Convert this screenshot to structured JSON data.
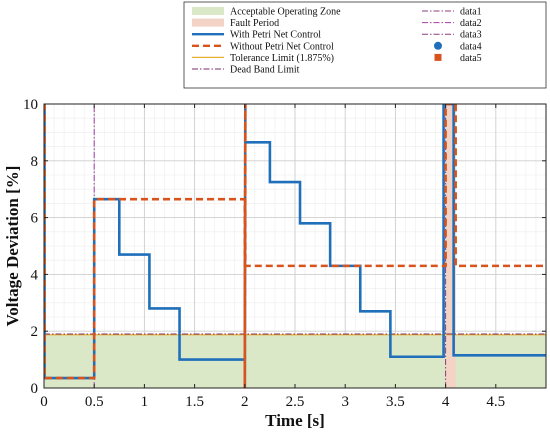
{
  "chart_data": {
    "type": "line",
    "xlabel": "Time [s]",
    "ylabel": "Voltage Deviation [%]",
    "xlim": [
      0,
      5
    ],
    "ylim": [
      0,
      10
    ],
    "xticks": [
      0,
      0.5,
      1,
      1.5,
      2,
      2.5,
      3,
      3.5,
      4,
      4.5
    ],
    "xtick_labels": [
      "0",
      "0.5",
      "1",
      "1.5",
      "2",
      "2.5",
      "3",
      "3.5",
      "4",
      "4.5"
    ],
    "yticks": [
      0,
      2,
      4,
      6,
      8,
      10
    ],
    "ytick_labels": [
      "0",
      "2",
      "4",
      "6",
      "8",
      "10"
    ],
    "grid": true,
    "legend_placement": "top",
    "tolerance_limit": 1.875,
    "dead_band_limit": 1.9,
    "acceptable_zone": {
      "y": [
        0,
        1.875
      ],
      "color": "#dbe8c8"
    },
    "fault_period": {
      "x": [
        4.0,
        4.1
      ],
      "color": "#f2d3c5"
    },
    "legend": [
      {
        "label": "Acceptable Operating Zone",
        "kind": "patch",
        "color": "#dbe8c8"
      },
      {
        "label": "data1",
        "kind": "dashdot",
        "color": "#8a3d7a"
      },
      {
        "label": "Fault Period",
        "kind": "patch",
        "color": "#f2d3c5"
      },
      {
        "label": "data2",
        "kind": "dashdot",
        "color": "#a43fa4"
      },
      {
        "label": "With Petri Net Control",
        "kind": "solid",
        "color": "#1f6fba"
      },
      {
        "label": "data3",
        "kind": "dashdot",
        "color": "#8a3d7a"
      },
      {
        "label": "Without Petri Net Control",
        "kind": "dashed",
        "color": "#d9541c"
      },
      {
        "label": "data4",
        "kind": "dot",
        "color": "#1f6fba"
      },
      {
        "label": "Tolerance Limit (1.875%)",
        "kind": "solid",
        "color": "#e8b030"
      },
      {
        "label": "data5",
        "kind": "square",
        "color": "#d9541c"
      },
      {
        "label": "Dead Band Limit",
        "kind": "dashdot",
        "color": "#7b2d6b"
      }
    ],
    "series": [
      {
        "name": "With Petri Net Control",
        "color": "#1f6fba",
        "style": "solid",
        "x": [
          0,
          0.005,
          0.005,
          0.5,
          0.5,
          0.75,
          0.75,
          1.05,
          1.05,
          1.35,
          1.35,
          2.0,
          2.0,
          2.005,
          2.005,
          2.25,
          2.25,
          2.55,
          2.55,
          2.85,
          2.85,
          3.15,
          3.15,
          3.45,
          3.45,
          3.98,
          3.98,
          4.0,
          4.0,
          4.08,
          4.08,
          5.0
        ],
        "y": [
          10,
          10,
          0.35,
          0.35,
          6.65,
          6.65,
          4.7,
          4.7,
          2.8,
          2.8,
          1.0,
          1.0,
          0,
          10,
          8.65,
          8.65,
          7.25,
          7.25,
          5.8,
          5.8,
          4.3,
          4.3,
          2.7,
          2.7,
          1.1,
          1.1,
          10,
          10,
          10,
          10,
          1.15,
          1.15
        ]
      },
      {
        "name": "Without Petri Net Control",
        "color": "#d9541c",
        "style": "dashed",
        "x": [
          0,
          0.005,
          0.005,
          0.5,
          0.5,
          2.0,
          2.0,
          2.005,
          2.005,
          4.0,
          4.0,
          4.1,
          4.1,
          5.0
        ],
        "y": [
          10,
          10,
          0.35,
          0.35,
          6.65,
          6.65,
          0,
          10,
          4.3,
          4.3,
          10,
          10,
          4.3,
          4.3
        ]
      },
      {
        "name": "data2",
        "color": "#a43fa4",
        "style": "dashdot",
        "x": [
          0.5,
          0.5
        ],
        "y": [
          0,
          10
        ]
      },
      {
        "name": "data3",
        "color": "#8a3d7a",
        "style": "dashdot",
        "x": [
          4.0,
          4.0
        ],
        "y": [
          0,
          10
        ]
      }
    ]
  }
}
